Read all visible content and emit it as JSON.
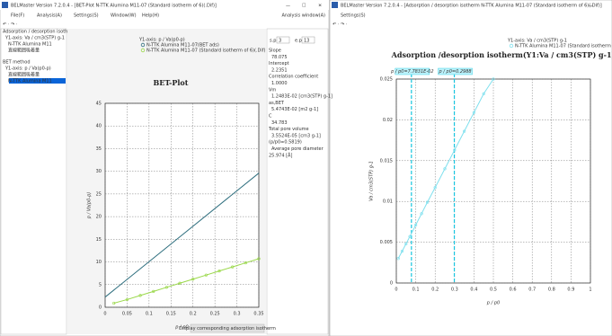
{
  "left_window": {
    "title": "BELMaster Version 7.2.0.4 - [BET-Plot N-TTK Alumina M11-07 (Standard isotherm of 6)(.Dif)]",
    "menu": [
      "File(F)",
      "Analysis(A)",
      "Settings(S)",
      "Window(W)",
      "Help(H)"
    ],
    "menu_right": "Analysis window(A)",
    "tree": [
      "Adsorption / desorption isoth",
      "Y1-axis: Va / cm3(STP) g-1",
      "N-TTK Alumina M11",
      "直線範囲吸着量",
      "BET method",
      "Y1-axis: p / Va(p0-p)",
      "直線範囲吸着量",
      "N-TTK Alumina M11"
    ],
    "info": {
      "sp_label": "s.p.",
      "sp": "3",
      "ep_label": "e.p.",
      "ep": "13",
      "lines": [
        "Slope",
        "78.075",
        "Intercept",
        "2.2351",
        "Correlation coefficient",
        "1.0000",
        "Vm",
        "1.2483E-02 [cm3(STP) g-1]",
        "as,BET",
        "5.4743E-02 [m2 g-1]",
        "C",
        "34.783",
        "Total pore volume",
        "3.5524E-05 [cm3 g-1]",
        "(p/p0=0.5819)",
        "Average pore diameter",
        "25.974 [Å]"
      ]
    },
    "button": "Display corresponding adsorption isotherm"
  },
  "right_window": {
    "title": "BELMaster Version 7.2.0.4 - [Adsorption / desorption isotherm N-TTK Alumina M11-07 (Standard isotherm of 6)(.Dif)]",
    "menu": [
      "Settings(S)"
    ]
  },
  "chart_data": [
    {
      "type": "line",
      "title": "BET-Plot",
      "legend_title": "Y1-axis: p / Va(p0-p)",
      "x_label": "p / p0",
      "y_label": "p / Va(p0-p)",
      "xlim": [
        0,
        0.35
      ],
      "ylim": [
        0,
        45
      ],
      "xticks": [
        0,
        0.05,
        0.1,
        0.15,
        0.2,
        0.25,
        0.3,
        0.35
      ],
      "yticks": [
        0,
        5,
        10,
        15,
        20,
        25,
        30,
        35,
        40,
        45
      ],
      "grid": true,
      "series": [
        {
          "name": "N-TTK Alumina M11-07(BET ads)",
          "color": "#2f6f7f",
          "markers": false,
          "x": [
            0,
            0.35
          ],
          "values": [
            2.24,
            29.6
          ]
        },
        {
          "name": "N-TTK Alumina M11-07 (Standard isotherm of 6)(.Dif)",
          "color": "#9ad84a",
          "markers": true,
          "x": [
            0.02,
            0.05,
            0.08,
            0.11,
            0.14,
            0.17,
            0.2,
            0.23,
            0.26,
            0.29,
            0.32,
            0.35
          ],
          "values": [
            0.9,
            1.7,
            2.6,
            3.5,
            4.4,
            5.3,
            6.2,
            7.1,
            8.0,
            8.9,
            9.8,
            10.7
          ]
        }
      ]
    },
    {
      "type": "line",
      "title": "Adsorption /desorption isotherm(Y1:Va / cm3(STP) g-1)",
      "legend_title": "Y1-axis: Va / cm3(STP) g-1",
      "x_label": "p / p0",
      "y_label": "Va / cm3(STP) g-1",
      "xlim": [
        0,
        1
      ],
      "ylim": [
        0,
        0.025
      ],
      "xticks": [
        0,
        0.1,
        0.2,
        0.3,
        0.4,
        0.5,
        0.6,
        0.7,
        0.8,
        0.9,
        1
      ],
      "yticks": [
        0,
        0.005,
        0.01,
        0.015,
        0.02,
        0.025
      ],
      "grid": true,
      "series": [
        {
          "name": "N-TTK Alumina M11-07 (Standard isotherm of 6)(.Dif)",
          "color": "#7fe0ee",
          "markers": true,
          "x": [
            0.01,
            0.03,
            0.05,
            0.07,
            0.1,
            0.13,
            0.16,
            0.2,
            0.25,
            0.3,
            0.35,
            0.4,
            0.45,
            0.5
          ],
          "values": [
            0.003,
            0.0039,
            0.0048,
            0.0057,
            0.0071,
            0.0085,
            0.0099,
            0.0117,
            0.014,
            0.0163,
            0.0186,
            0.0209,
            0.0232,
            0.025
          ]
        }
      ],
      "annotations": [
        {
          "label": "p / p0=7.7831E-02",
          "x": 0.077831
        },
        {
          "label": "p / p0=0.2988",
          "x": 0.2988
        }
      ]
    }
  ]
}
